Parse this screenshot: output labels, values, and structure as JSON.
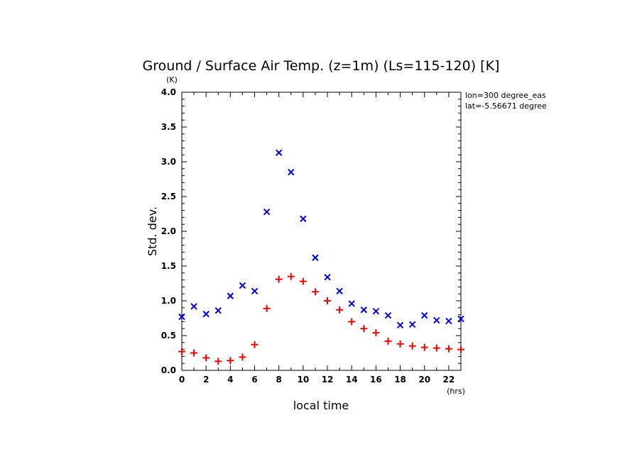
{
  "chart_data": {
    "type": "scatter",
    "title": "Ground / Surface Air Temp. (z=1m) (Ls=115-120) [K]",
    "xlabel": "local time",
    "ylabel": "Std. dev.",
    "x_unit": "(hrs)",
    "y_unit": "(K)",
    "xlim": [
      0,
      23
    ],
    "ylim": [
      0,
      4.0
    ],
    "xticks": [
      "0",
      "2",
      "4",
      "6",
      "8",
      "10",
      "12",
      "14",
      "16",
      "18",
      "20",
      "22"
    ],
    "yticks": [
      "0.0",
      "0.5",
      "1.0",
      "1.5",
      "2.0",
      "2.5",
      "3.0",
      "3.5",
      "4.0"
    ],
    "annotations": [
      "lon=300 degree_eas",
      "lat=-5.56671 degree"
    ],
    "series": [
      {
        "marker": "x",
        "color": "#0000dd",
        "x": [
          0,
          1,
          2,
          3,
          4,
          5,
          6,
          7,
          8,
          9,
          10,
          11,
          12,
          13,
          14,
          15,
          16,
          17,
          18,
          19,
          20,
          21,
          22,
          23
        ],
        "values": [
          0.77,
          0.92,
          0.81,
          0.86,
          1.07,
          1.22,
          1.14,
          2.28,
          3.13,
          2.85,
          2.18,
          1.62,
          1.34,
          1.14,
          0.96,
          0.87,
          0.85,
          0.79,
          0.65,
          0.66,
          0.79,
          0.72,
          0.71,
          0.74
        ]
      },
      {
        "marker": "+",
        "color": "#ee0000",
        "x": [
          0,
          1,
          2,
          3,
          4,
          5,
          6,
          7,
          8,
          9,
          10,
          11,
          12,
          13,
          14,
          15,
          16,
          17,
          18,
          19,
          20,
          21,
          22,
          23
        ],
        "values": [
          0.27,
          0.25,
          0.18,
          0.13,
          0.14,
          0.19,
          0.37,
          0.89,
          1.31,
          1.35,
          1.28,
          1.13,
          1.0,
          0.87,
          0.7,
          0.6,
          0.54,
          0.42,
          0.38,
          0.35,
          0.33,
          0.32,
          0.31,
          0.3
        ]
      }
    ]
  }
}
